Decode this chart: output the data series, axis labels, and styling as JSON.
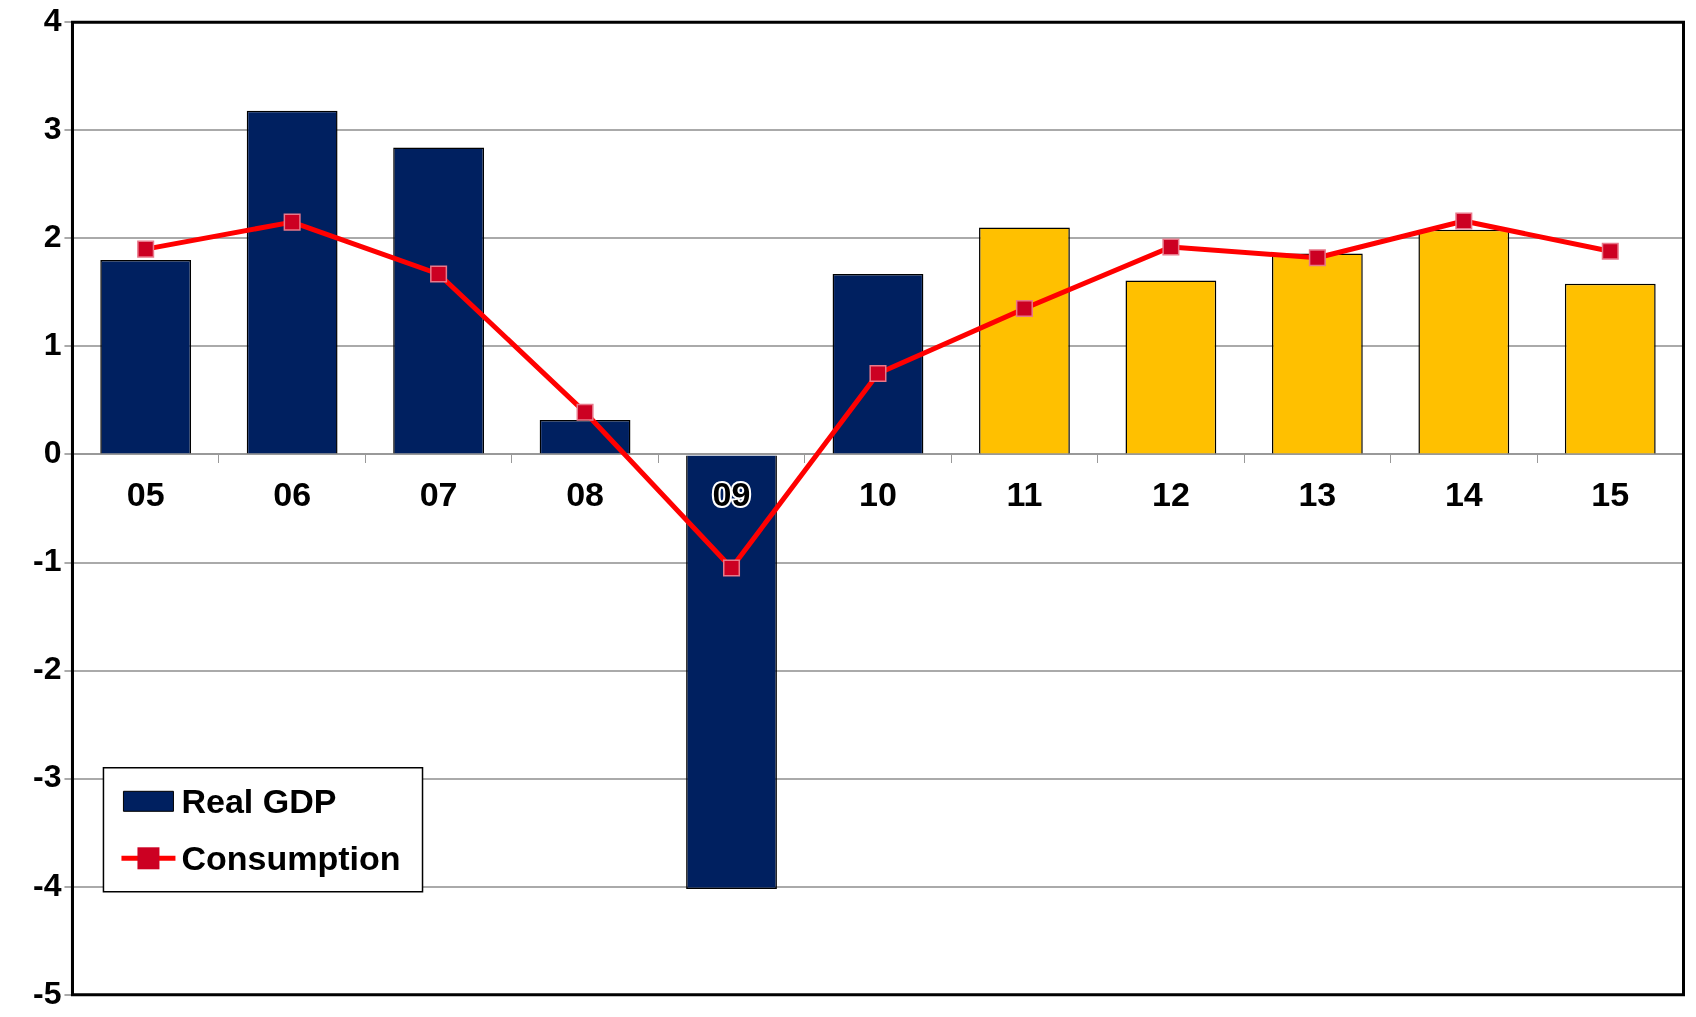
{
  "chart_data": {
    "type": "bar",
    "categories": [
      "05",
      "06",
      "07",
      "08",
      "09",
      "10",
      "11",
      "12",
      "13",
      "14",
      "15"
    ],
    "series": [
      {
        "name": "Real GDP",
        "colors": [
          "#002060",
          "#002060",
          "#002060",
          "#002060",
          "#002060",
          "#002060",
          "#ffc000",
          "#ffc000",
          "#ffc000",
          "#ffc000",
          "#ffc000"
        ],
        "values": [
          1.8,
          3.18,
          2.84,
          0.32,
          -4.02,
          1.67,
          2.1,
          1.61,
          1.86,
          2.08,
          1.58
        ]
      },
      {
        "name": "Consumption",
        "type": "line",
        "color": "#ff0000",
        "marker": "square",
        "values": [
          1.9,
          2.15,
          1.67,
          0.39,
          -1.05,
          0.75,
          1.35,
          1.92,
          1.82,
          2.16,
          1.88
        ]
      }
    ],
    "ylim": [
      -5,
      4
    ],
    "yticks": [
      -5,
      -4,
      -3,
      -2,
      -1,
      0,
      1,
      2,
      3,
      4
    ],
    "grid": "y",
    "legend": "bottom left"
  }
}
